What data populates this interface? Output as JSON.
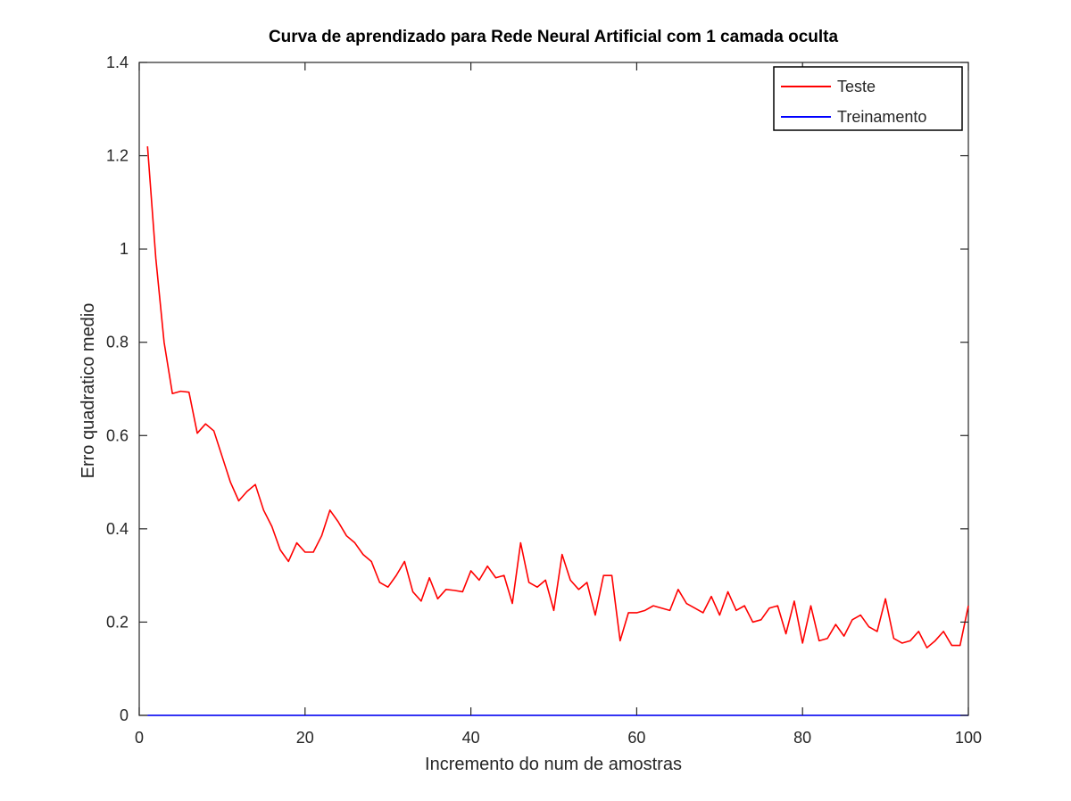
{
  "chart_data": {
    "type": "line",
    "title": "Curva de aprendizado para Rede Neural Artificial com 1 camada oculta",
    "xlabel": "Incremento do num de amostras",
    "ylabel": "Erro quadratico medio",
    "xlim": [
      0,
      100
    ],
    "ylim": [
      0,
      1.4
    ],
    "xticks": [
      0,
      20,
      40,
      60,
      80,
      100
    ],
    "xtick_labels": [
      "0",
      "20",
      "40",
      "60",
      "80",
      "100"
    ],
    "yticks": [
      0,
      0.2,
      0.4,
      0.6,
      0.8,
      1.0,
      1.2,
      1.4
    ],
    "ytick_labels": [
      "0",
      "0.2",
      "0.4",
      "0.6",
      "0.8",
      "1",
      "1.2",
      "1.4"
    ],
    "grid": false,
    "legend_position": "top-right",
    "x": [
      1,
      2,
      3,
      4,
      5,
      6,
      7,
      8,
      9,
      10,
      11,
      12,
      13,
      14,
      15,
      16,
      17,
      18,
      19,
      20,
      21,
      22,
      23,
      24,
      25,
      26,
      27,
      28,
      29,
      30,
      31,
      32,
      33,
      34,
      35,
      36,
      37,
      38,
      39,
      40,
      41,
      42,
      43,
      44,
      45,
      46,
      47,
      48,
      49,
      50,
      51,
      52,
      53,
      54,
      55,
      56,
      57,
      58,
      59,
      60,
      61,
      62,
      63,
      64,
      65,
      66,
      67,
      68,
      69,
      70,
      71,
      72,
      73,
      74,
      75,
      76,
      77,
      78,
      79,
      80,
      81,
      82,
      83,
      84,
      85,
      86,
      87,
      88,
      89,
      90,
      91,
      92,
      93,
      94,
      95,
      96,
      97,
      98,
      99,
      100
    ],
    "series": [
      {
        "name": "Teste",
        "color": "#ff0000",
        "values": [
          1.22,
          0.98,
          0.8,
          0.69,
          0.695,
          0.693,
          0.605,
          0.625,
          0.61,
          0.555,
          0.5,
          0.46,
          0.48,
          0.495,
          0.44,
          0.405,
          0.355,
          0.33,
          0.37,
          0.35,
          0.35,
          0.385,
          0.44,
          0.415,
          0.385,
          0.37,
          0.345,
          0.33,
          0.285,
          0.275,
          0.3,
          0.33,
          0.265,
          0.245,
          0.295,
          0.25,
          0.27,
          0.268,
          0.265,
          0.31,
          0.29,
          0.32,
          0.295,
          0.3,
          0.24,
          0.37,
          0.285,
          0.275,
          0.29,
          0.225,
          0.345,
          0.29,
          0.27,
          0.285,
          0.215,
          0.3,
          0.3,
          0.16,
          0.22,
          0.22,
          0.225,
          0.235,
          0.23,
          0.225,
          0.27,
          0.24,
          0.23,
          0.22,
          0.255,
          0.215,
          0.265,
          0.225,
          0.235,
          0.2,
          0.205,
          0.23,
          0.235,
          0.175,
          0.245,
          0.155,
          0.235,
          0.16,
          0.165,
          0.195,
          0.17,
          0.205,
          0.215,
          0.19,
          0.18,
          0.25,
          0.165,
          0.155,
          0.16,
          0.18,
          0.145,
          0.16,
          0.18,
          0.15,
          0.15,
          0.235
        ]
      },
      {
        "name": "Treinamento",
        "color": "#0000ff",
        "values": [
          0,
          0,
          0,
          0,
          0,
          0,
          0,
          0,
          0,
          0,
          0,
          0,
          0,
          0,
          0,
          0,
          0,
          0,
          0,
          0,
          0,
          0,
          0,
          0,
          0,
          0,
          0,
          0,
          0,
          0,
          0,
          0,
          0,
          0,
          0,
          0,
          0,
          0,
          0,
          0,
          0,
          0,
          0,
          0,
          0,
          0,
          0,
          0,
          0,
          0,
          0,
          0,
          0,
          0,
          0,
          0,
          0,
          0,
          0,
          0,
          0,
          0,
          0,
          0,
          0,
          0,
          0,
          0,
          0,
          0,
          0,
          0,
          0,
          0,
          0,
          0,
          0,
          0,
          0,
          0,
          0,
          0,
          0,
          0,
          0,
          0,
          0,
          0,
          0,
          0,
          0,
          0,
          0,
          0,
          0,
          0,
          0,
          0,
          0,
          0
        ]
      }
    ]
  }
}
